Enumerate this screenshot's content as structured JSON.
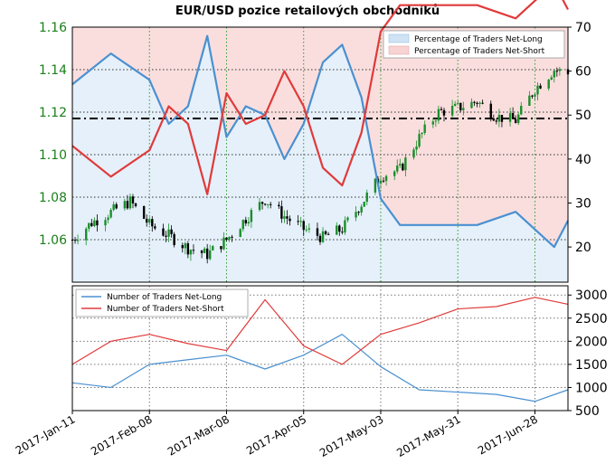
{
  "title": "EUR/USD pozice retailových obchodníků",
  "colors": {
    "price_up": "#1a8f2a",
    "price_down": "#000000",
    "long": "#4a90d0",
    "short": "#e03a3a",
    "long_fill": "#cfe3f5",
    "short_fill": "#f8d3d3",
    "left_axis_text": "#1a7f1a",
    "grid_vertical": "#2e9e2e",
    "grid_horizontal": "#333333"
  },
  "x_axis": {
    "start": "2017-01-11",
    "end": "2017-07-10",
    "tick_labels": [
      "2017-Jan-11",
      "2017-Feb-08",
      "2017-Mar-08",
      "2017-Apr-05",
      "2017-May-03",
      "2017-May-31",
      "2017-Jun-28"
    ]
  },
  "chart_data": [
    {
      "type": "area",
      "title": "EUR/USD pozice retailových obchodníků",
      "xlabel": "",
      "ylabel": "",
      "left_axis": {
        "ylim": [
          1.04,
          1.16
        ],
        "ticks": [
          "1.06",
          "1.08",
          "1.10",
          "1.12",
          "1.14",
          "1.16"
        ]
      },
      "right_axis": {
        "ylim": [
          12,
          70
        ],
        "ticks": [
          "20",
          "30",
          "40",
          "50",
          "60",
          "70"
        ]
      },
      "reference_line": {
        "value": 1.117,
        "style": "dash-dot"
      },
      "legend_position": "top-right",
      "legend": [
        "Percentage of Traders Net-Long",
        "Percentage of Traders Net-Short"
      ],
      "grid": true,
      "price_series": {
        "name": "EUR/USD",
        "dates": [
          "2017-01-11",
          "2017-01-18",
          "2017-01-25",
          "2017-02-01",
          "2017-02-08",
          "2017-02-15",
          "2017-02-22",
          "2017-03-01",
          "2017-03-08",
          "2017-03-15",
          "2017-03-22",
          "2017-03-29",
          "2017-04-05",
          "2017-04-12",
          "2017-04-19",
          "2017-04-26",
          "2017-05-03",
          "2017-05-10",
          "2017-05-17",
          "2017-05-24",
          "2017-05-31",
          "2017-06-07",
          "2017-06-14",
          "2017-06-21",
          "2017-06-28",
          "2017-07-05",
          "2017-07-10"
        ],
        "values": [
          1.06,
          1.068,
          1.073,
          1.078,
          1.067,
          1.062,
          1.056,
          1.053,
          1.06,
          1.07,
          1.079,
          1.071,
          1.065,
          1.061,
          1.065,
          1.077,
          1.09,
          1.093,
          1.108,
          1.12,
          1.122,
          1.125,
          1.118,
          1.116,
          1.131,
          1.14,
          1.138
        ]
      },
      "series": [
        {
          "name": "Percentage of Traders Net-Long",
          "dates": [
            "2017-01-11",
            "2017-01-25",
            "2017-02-08",
            "2017-02-15",
            "2017-02-22",
            "2017-03-01",
            "2017-03-08",
            "2017-03-15",
            "2017-03-22",
            "2017-03-29",
            "2017-04-05",
            "2017-04-12",
            "2017-04-19",
            "2017-04-26",
            "2017-05-03",
            "2017-05-10",
            "2017-05-24",
            "2017-06-07",
            "2017-06-21",
            "2017-07-05",
            "2017-07-10"
          ],
          "values": [
            57,
            64,
            58,
            48,
            52,
            68,
            45,
            52,
            50,
            40,
            48,
            62,
            66,
            54,
            31,
            25,
            25,
            25,
            28,
            20,
            26
          ]
        },
        {
          "name": "Percentage of Traders Net-Short",
          "dates": [
            "2017-01-11",
            "2017-01-25",
            "2017-02-08",
            "2017-02-15",
            "2017-02-22",
            "2017-03-01",
            "2017-03-08",
            "2017-03-15",
            "2017-03-22",
            "2017-03-29",
            "2017-04-05",
            "2017-04-12",
            "2017-04-19",
            "2017-04-26",
            "2017-05-03",
            "2017-05-10",
            "2017-05-24",
            "2017-06-07",
            "2017-06-21",
            "2017-07-05",
            "2017-07-10"
          ],
          "values": [
            43,
            36,
            42,
            52,
            48,
            32,
            55,
            48,
            50,
            60,
            52,
            38,
            34,
            46,
            69,
            75,
            75,
            75,
            72,
            80,
            74
          ]
        }
      ]
    },
    {
      "type": "line",
      "xlabel": "",
      "ylabel": "",
      "ylim": [
        500,
        3200
      ],
      "right_axis_ticks": [
        "500",
        "1000",
        "1500",
        "2000",
        "2500",
        "3000"
      ],
      "legend_position": "top-left",
      "grid": true,
      "series": [
        {
          "name": "Number of Traders Net-Long",
          "dates": [
            "2017-01-11",
            "2017-01-25",
            "2017-02-08",
            "2017-02-22",
            "2017-03-08",
            "2017-03-22",
            "2017-04-05",
            "2017-04-19",
            "2017-05-03",
            "2017-05-17",
            "2017-05-31",
            "2017-06-14",
            "2017-06-28",
            "2017-07-10"
          ],
          "values": [
            1100,
            1000,
            1500,
            1600,
            1700,
            1400,
            1700,
            2150,
            1450,
            950,
            900,
            850,
            700,
            950
          ]
        },
        {
          "name": "Number of Traders Net-Short",
          "dates": [
            "2017-01-11",
            "2017-01-25",
            "2017-02-08",
            "2017-02-22",
            "2017-03-08",
            "2017-03-22",
            "2017-04-05",
            "2017-04-19",
            "2017-05-03",
            "2017-05-17",
            "2017-05-31",
            "2017-06-14",
            "2017-06-28",
            "2017-07-10"
          ],
          "values": [
            1500,
            2000,
            2150,
            1950,
            1800,
            2900,
            1900,
            1500,
            2150,
            2400,
            2700,
            2750,
            2950,
            2800
          ]
        }
      ]
    }
  ]
}
